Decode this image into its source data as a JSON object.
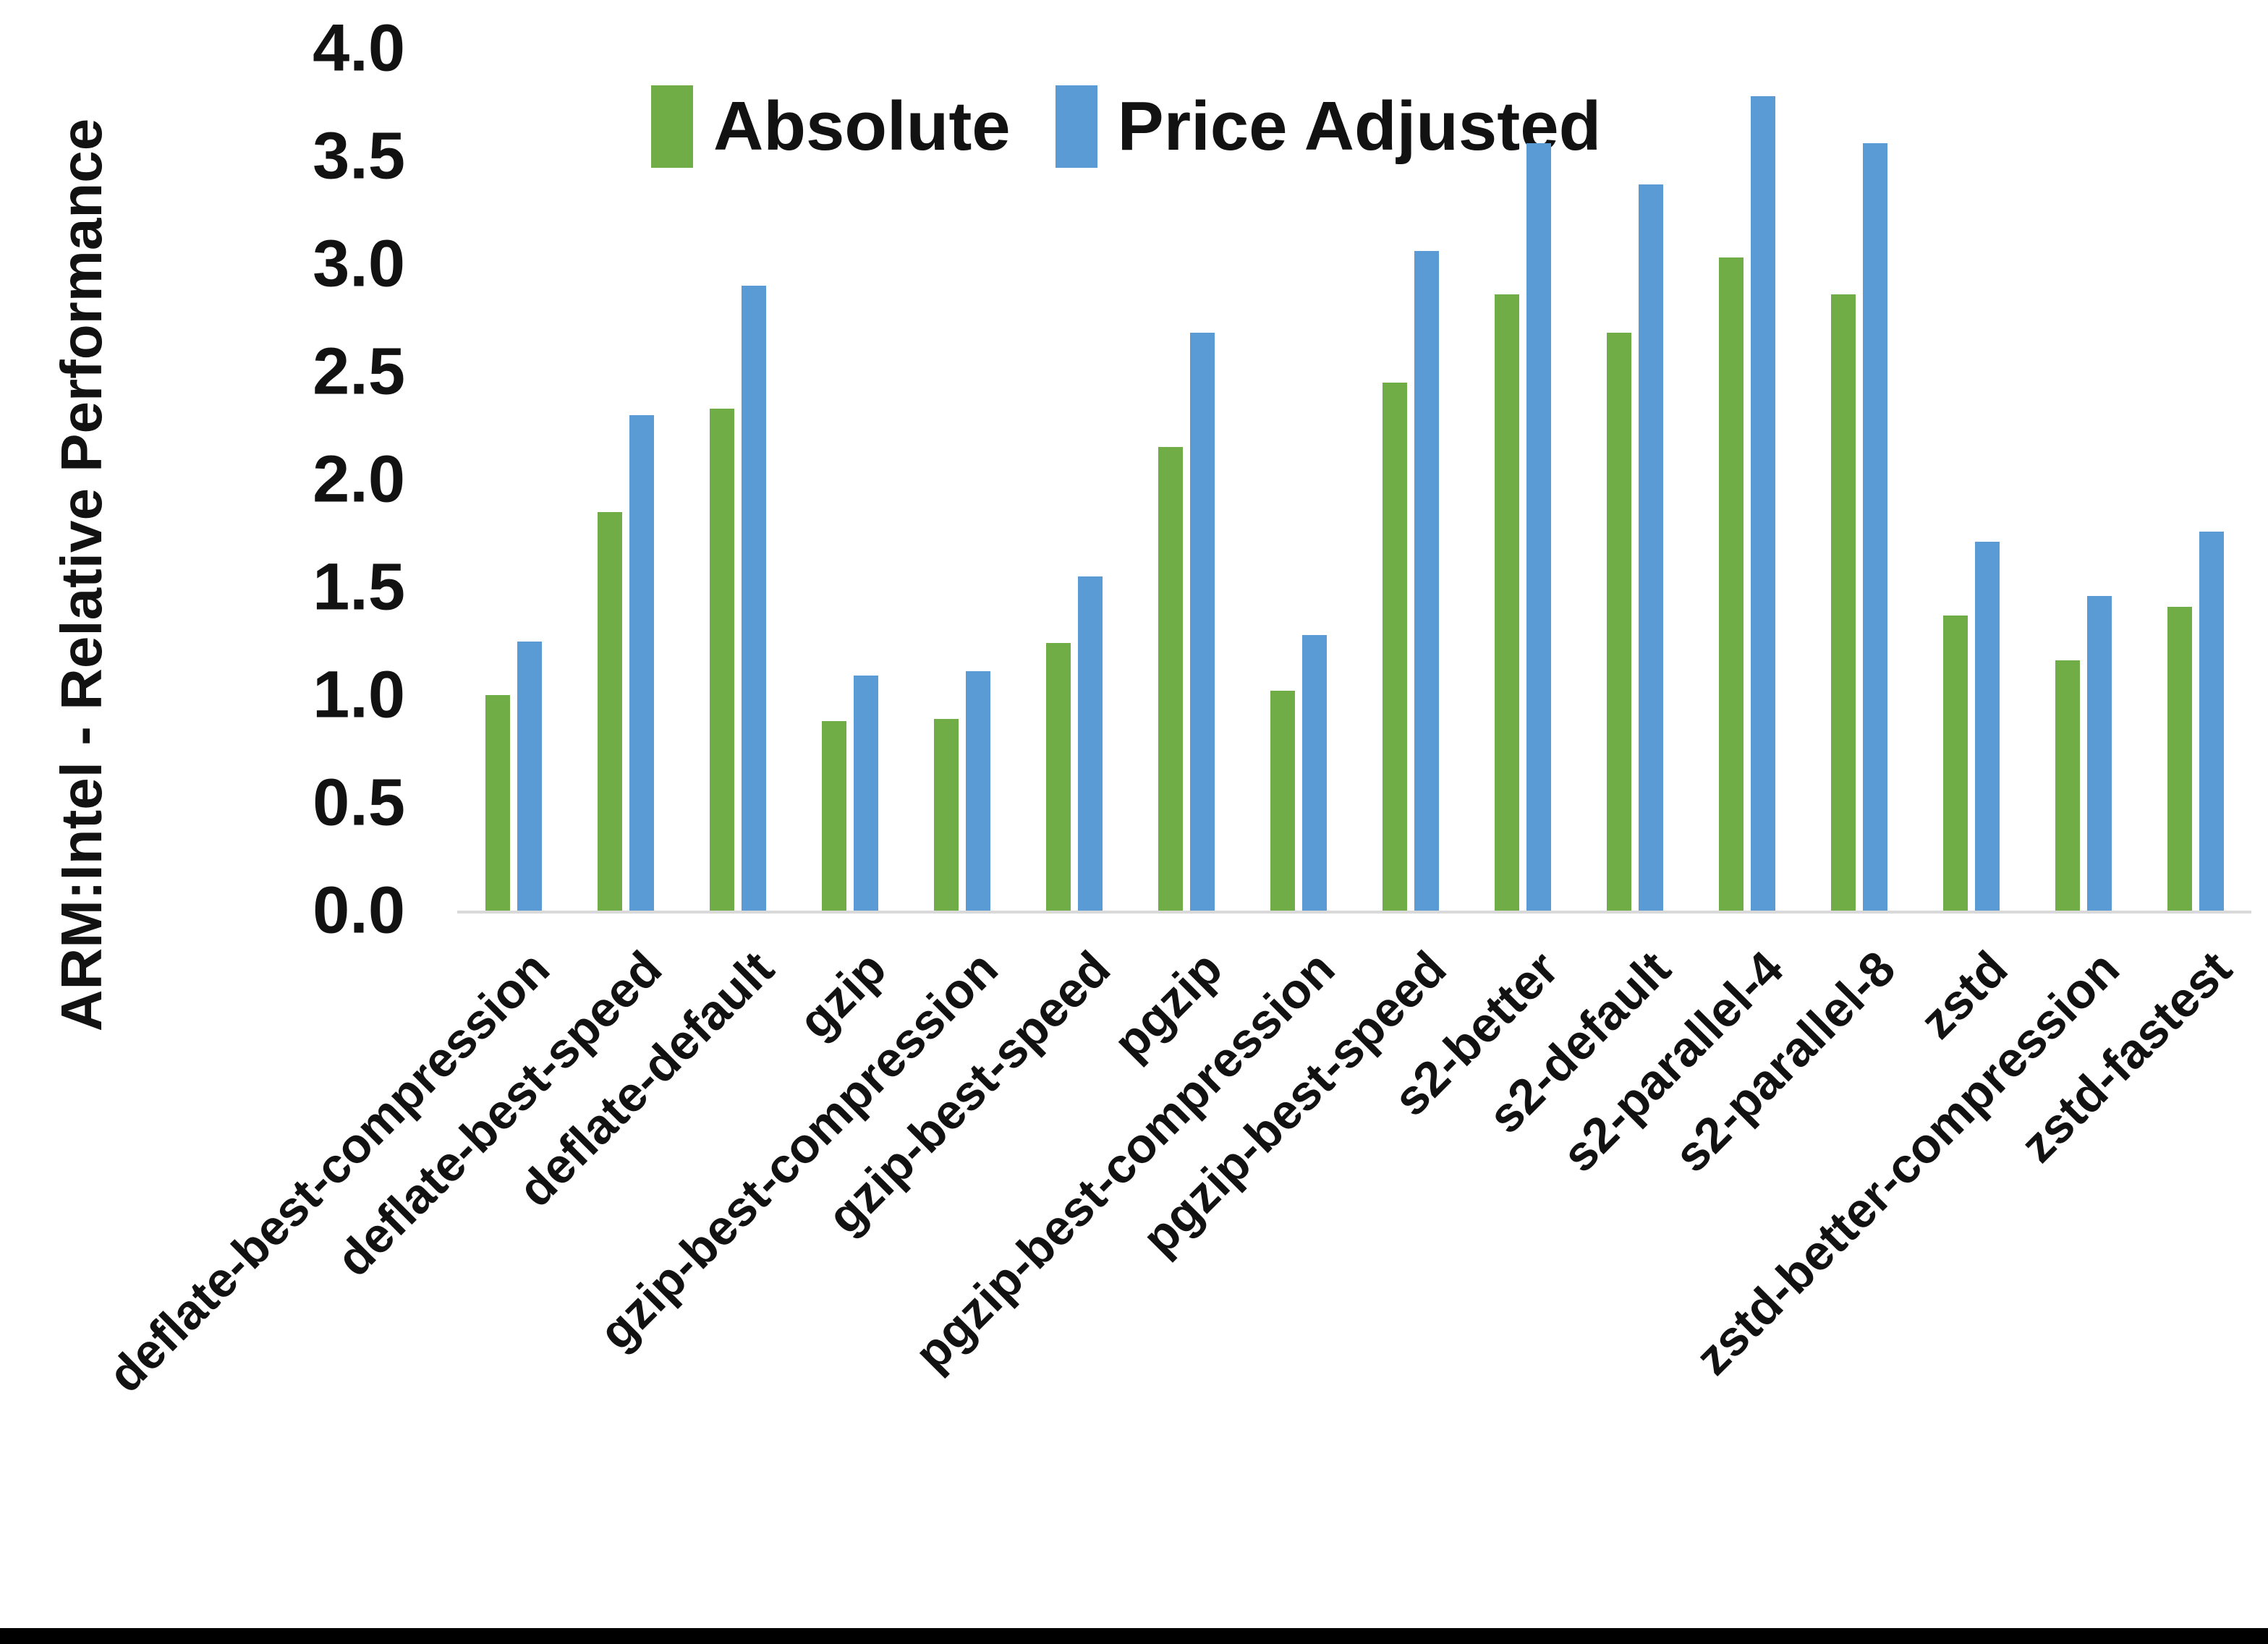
{
  "chart_data": {
    "type": "bar",
    "title": "",
    "ylabel": "ARM:Intel - Relative Performance",
    "xlabel": "",
    "ylim": [
      0.0,
      4.0
    ],
    "ytick_step": 0.5,
    "ytick_labels": [
      "0.0",
      "0.5",
      "1.0",
      "1.5",
      "2.0",
      "2.5",
      "3.0",
      "3.5",
      "4.0"
    ],
    "grid": "off",
    "legend_position": "top-center",
    "axis_line_color": "#d9d9d9",
    "categories": [
      "deflate-best-compression",
      "deflate-best-speed",
      "deflate-default",
      "gzip",
      "gzip-best-compression",
      "gzip-best-speed",
      "pgzip",
      "pgzip-best-compression",
      "pgzip-best-speed",
      "s2-better",
      "s2-default",
      "s2-parallel-4",
      "s2-parallel-8",
      "zstd",
      "zstd-better-compression",
      "zstd-fastest"
    ],
    "series": [
      {
        "name": "Absolute",
        "color": "#70AD47",
        "values": [
          1.0,
          1.85,
          2.33,
          0.88,
          0.89,
          1.24,
          2.15,
          1.02,
          2.45,
          2.86,
          2.68,
          3.03,
          2.86,
          1.37,
          1.16,
          1.41
        ]
      },
      {
        "name": "Price Adjusted",
        "color": "#5B9BD5",
        "values": [
          1.25,
          2.3,
          2.9,
          1.09,
          1.11,
          1.55,
          2.68,
          1.28,
          3.06,
          3.56,
          3.37,
          3.78,
          3.56,
          1.71,
          1.46,
          1.76
        ]
      }
    ]
  },
  "page": {
    "background": "#ffffff",
    "bottom_border_color": "#000000",
    "text_color": "#121212"
  }
}
